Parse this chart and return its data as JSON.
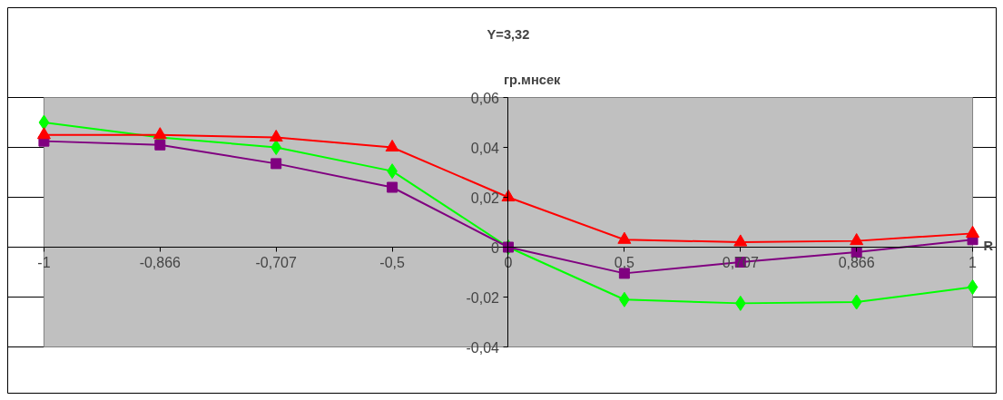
{
  "chart_data": {
    "type": "line",
    "title": "Y=3,32",
    "xlabel": "R",
    "ylabel": "гр.мнсек",
    "categories": [
      "-1",
      "-0,866",
      "-0,707",
      "-0,5",
      "0",
      "0,5",
      "0,707",
      "0,866",
      "1"
    ],
    "series": [
      {
        "color": "#00ff00",
        "marker": "diamond",
        "values": [
          0.05,
          0.044,
          0.04,
          0.0305,
          0,
          -0.021,
          -0.0225,
          -0.022,
          -0.016
        ]
      },
      {
        "color": "#800080",
        "marker": "square",
        "values": [
          0.0425,
          0.041,
          0.0335,
          0.024,
          0,
          -0.0105,
          -0.006,
          -0.002,
          0.003
        ]
      },
      {
        "color": "#ff0000",
        "marker": "triangle",
        "values": [
          0.045,
          0.045,
          0.044,
          0.04,
          0.02,
          0.003,
          0.002,
          0.0025,
          0.0055
        ]
      }
    ],
    "ylim": [
      -0.04,
      0.06
    ],
    "yticks": [
      {
        "value": -0.04,
        "label": "-0,04"
      },
      {
        "value": -0.02,
        "label": "-0,02"
      },
      {
        "value": 0,
        "label": "0"
      },
      {
        "value": 0.02,
        "label": "0,02"
      },
      {
        "value": 0.04,
        "label": "0,04"
      },
      {
        "value": 0.06,
        "label": "0,06"
      }
    ],
    "grid": "y",
    "line_style": "solid"
  }
}
